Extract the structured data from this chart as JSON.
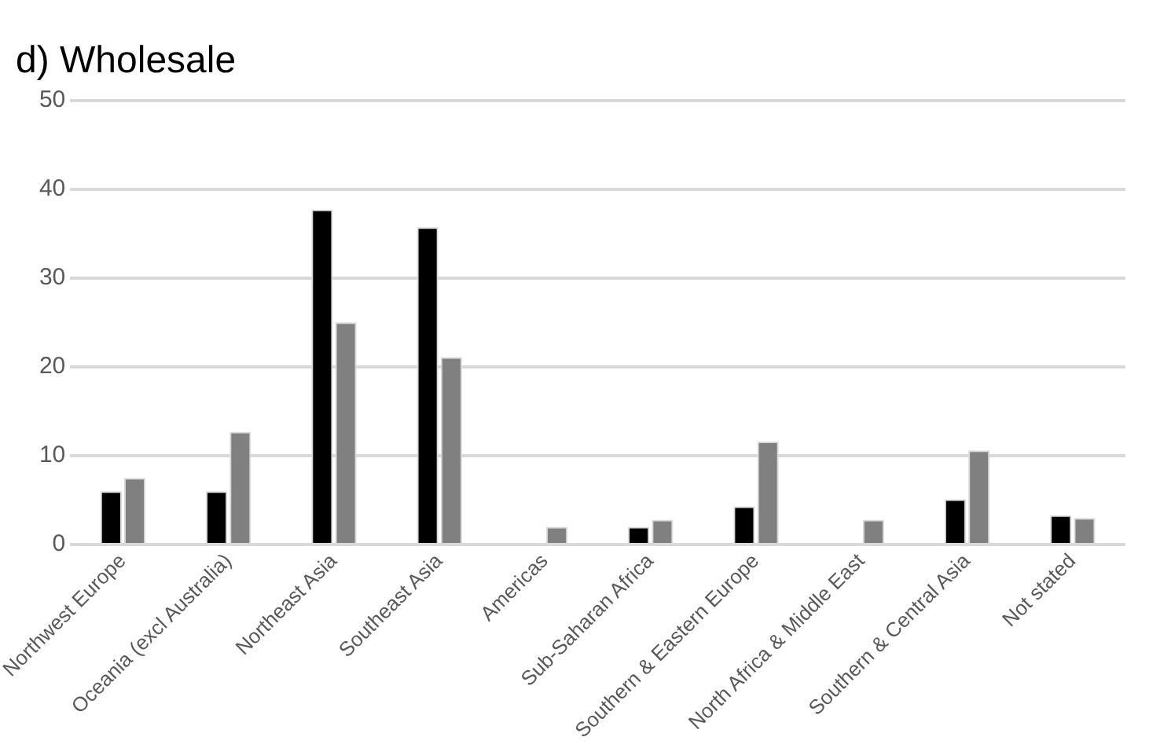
{
  "chart_data": {
    "type": "bar",
    "title": "d) Wholesale",
    "categories": [
      "Northwest Europe",
      "Oceania (excl Australia)",
      "Northeast Asia",
      "Southeast Asia",
      "Americas",
      "Sub-Saharan Africa",
      "Southern & Eastern Europe",
      "North Africa & Middle East",
      "Southern & Central Asia",
      "Not stated"
    ],
    "series": [
      {
        "color": "#000000",
        "values": [
          6.0,
          6.0,
          37.7,
          35.7,
          null,
          2.0,
          4.3,
          null,
          5.1,
          3.3
        ]
      },
      {
        "color": "#808080",
        "values": [
          7.5,
          12.7,
          25.0,
          21.1,
          2.0,
          2.8,
          11.6,
          2.8,
          10.6,
          3.0
        ]
      }
    ],
    "ylim": [
      0,
      50
    ],
    "yticks": [
      0,
      10,
      20,
      30,
      40,
      50
    ],
    "grid": "y",
    "legend": false
  }
}
